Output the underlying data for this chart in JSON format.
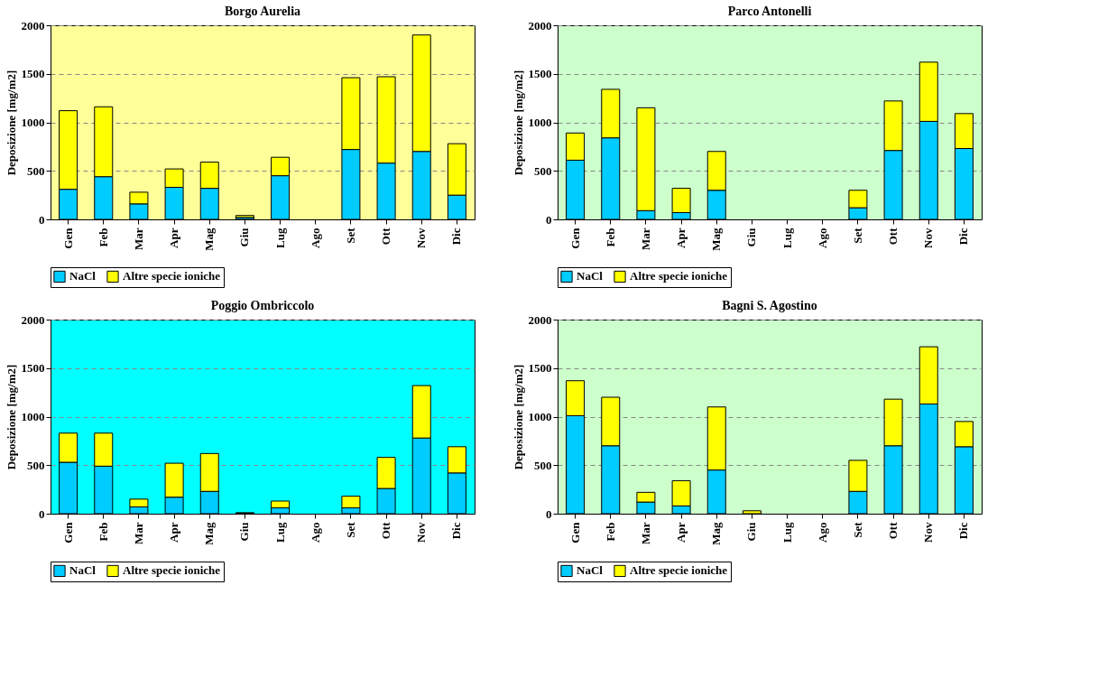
{
  "chart_data": [
    {
      "type": "bar",
      "title": "Borgo Aurelia",
      "ylabel": "Deposizione [mg/m2]",
      "categories": [
        "Gen",
        "Feb",
        "Mar",
        "Apr",
        "Mag",
        "Giu",
        "Lug",
        "Ago",
        "Set",
        "Ott",
        "Nov",
        "Dic"
      ],
      "stacked": true,
      "ylim": [
        0,
        2000
      ],
      "yticks": [
        0,
        500,
        1000,
        1500,
        2000
      ],
      "grid": "y",
      "legend": "bottom",
      "series": [
        {
          "name": "NaCl",
          "color": "#00ccff",
          "values": [
            310,
            440,
            160,
            330,
            320,
            20,
            450,
            null,
            720,
            580,
            700,
            250
          ]
        },
        {
          "name": "Altre specie ioniche",
          "color": "#ffff00",
          "values": [
            810,
            720,
            120,
            190,
            270,
            20,
            190,
            null,
            740,
            890,
            1200,
            530
          ]
        }
      ]
    },
    {
      "type": "bar",
      "title": "Parco Antonelli",
      "ylabel": "Deposizione [mg/m2]",
      "categories": [
        "Gen",
        "Feb",
        "Mar",
        "Apr",
        "Mag",
        "Giu",
        "Lug",
        "Ago",
        "Set",
        "Ott",
        "Nov",
        "Dic"
      ],
      "stacked": true,
      "ylim": [
        0,
        2000
      ],
      "yticks": [
        0,
        500,
        1000,
        1500,
        2000
      ],
      "grid": "y",
      "legend": "bottom",
      "series": [
        {
          "name": "NaCl",
          "color": "#00ccff",
          "values": [
            610,
            840,
            90,
            70,
            300,
            null,
            null,
            null,
            120,
            710,
            1010,
            730
          ]
        },
        {
          "name": "Altre specie ioniche",
          "color": "#ffff00",
          "values": [
            280,
            500,
            1060,
            250,
            400,
            null,
            null,
            null,
            180,
            510,
            610,
            360
          ]
        }
      ]
    },
    {
      "type": "bar",
      "title": "Poggio Ombriccolo",
      "ylabel": "Deposizione [mg/m2]",
      "categories": [
        "Gen",
        "Feb",
        "Mar",
        "Apr",
        "Mag",
        "Giu",
        "Lug",
        "Ago",
        "Set",
        "Ott",
        "Nov",
        "Dic"
      ],
      "stacked": true,
      "ylim": [
        0,
        2000
      ],
      "yticks": [
        0,
        500,
        1000,
        1500,
        2000
      ],
      "grid": "y",
      "legend": "bottom",
      "series": [
        {
          "name": "NaCl",
          "color": "#00ccff",
          "values": [
            530,
            490,
            70,
            170,
            230,
            5,
            60,
            null,
            60,
            260,
            780,
            420
          ]
        },
        {
          "name": "Altre specie ioniche",
          "color": "#ffff00",
          "values": [
            300,
            340,
            80,
            350,
            390,
            5,
            70,
            null,
            120,
            320,
            540,
            270
          ]
        }
      ]
    },
    {
      "type": "bar",
      "title": "Bagni S. Agostino",
      "ylabel": "Deposizione [mg/m2]",
      "categories": [
        "Gen",
        "Feb",
        "Mar",
        "Apr",
        "Mag",
        "Giu",
        "Lug",
        "Ago",
        "Set",
        "Ott",
        "Nov",
        "Dic"
      ],
      "stacked": true,
      "ylim": [
        0,
        2000
      ],
      "yticks": [
        0,
        500,
        1000,
        1500,
        2000
      ],
      "grid": "y",
      "legend": "bottom",
      "series": [
        {
          "name": "NaCl",
          "color": "#00ccff",
          "values": [
            1010,
            700,
            120,
            80,
            450,
            0,
            null,
            null,
            230,
            700,
            1130,
            690
          ]
        },
        {
          "name": "Altre specie ioniche",
          "color": "#ffff00",
          "values": [
            360,
            500,
            100,
            260,
            650,
            30,
            null,
            null,
            320,
            480,
            590,
            260
          ]
        }
      ]
    }
  ]
}
